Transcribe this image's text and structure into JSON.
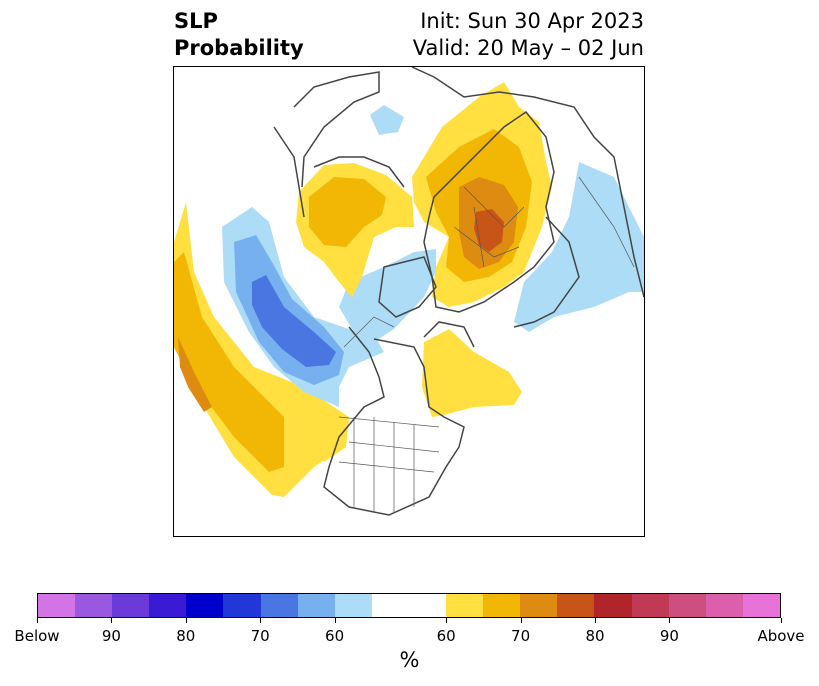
{
  "title": {
    "left_line1": "SLP",
    "left_line2": "Probability",
    "right_line1": "Init: Sun 30 Apr 2023",
    "right_line2": "Valid: 20 May – 02 Jun"
  },
  "colorbar": {
    "unit": "%",
    "colors": [
      "#d273e6",
      "#9a57e0",
      "#6a3bd9",
      "#3a1ad4",
      "#0000cc",
      "#2237d8",
      "#4a76e2",
      "#77b0ef",
      "#addcf7",
      "#ffffff",
      "#ffe040",
      "#f2b705",
      "#de8b12",
      "#c75518",
      "#b0252a",
      "#c13a55",
      "#cd4f80",
      "#dc5fab",
      "#e773d9"
    ],
    "tick_labels": [
      "Below",
      "90",
      "80",
      "70",
      "60",
      "60",
      "70",
      "80",
      "90",
      "Above"
    ]
  },
  "map": {
    "projection": "north polar stereographic",
    "legend_colors": {
      "above_60": "#ffe040",
      "above_65": "#f2b705",
      "above_70": "#de8b12",
      "above_75": "#c75518",
      "below_60": "#addcf7",
      "below_65": "#77b0ef",
      "below_70": "#4a76e2",
      "coastline": "#444444"
    }
  }
}
